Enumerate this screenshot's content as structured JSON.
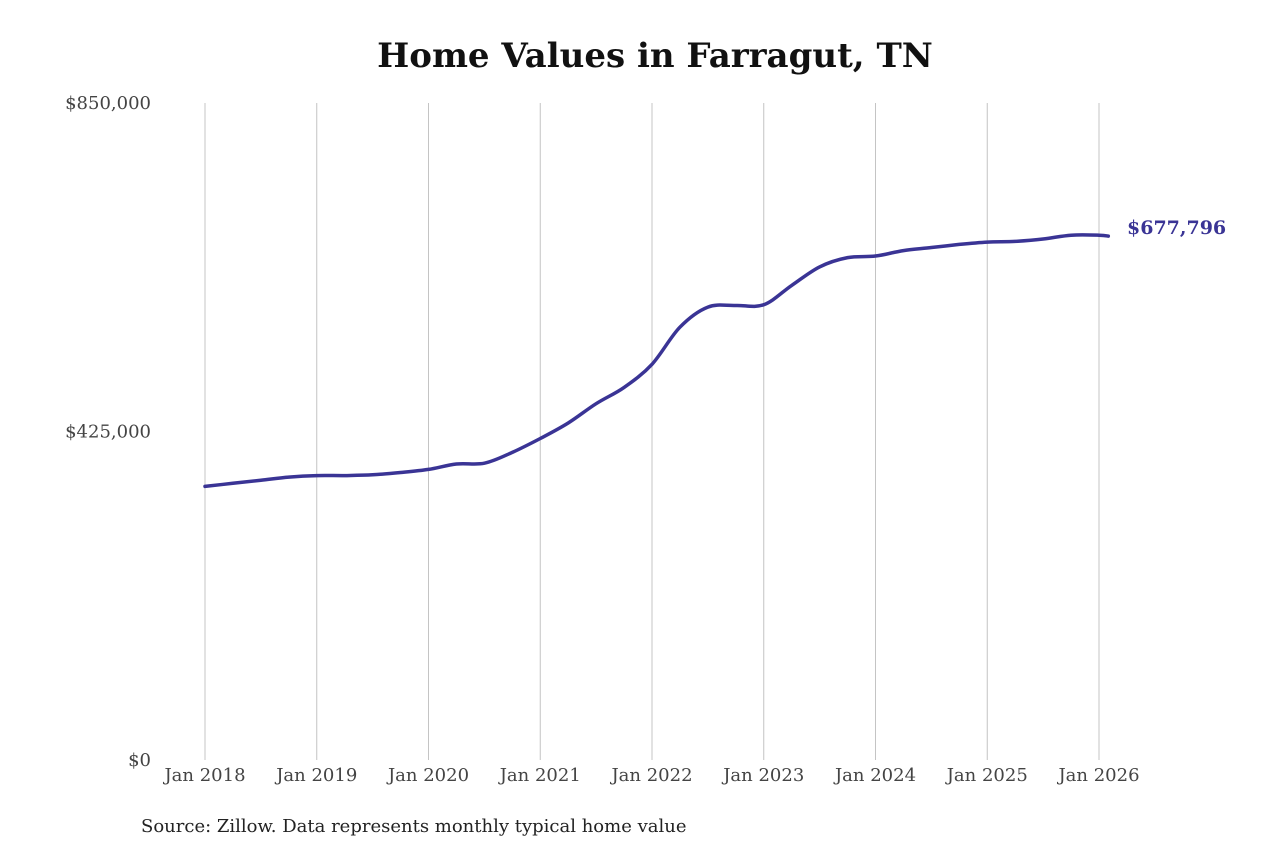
{
  "chart_data": {
    "type": "line",
    "title": "Home Values in Farragut, TN",
    "source": "Source: Zillow. Data represents monthly typical home value",
    "xlabel": "",
    "ylabel": "",
    "ylim": [
      0,
      850000
    ],
    "y_ticks": [
      {
        "value": 0,
        "label": "$0"
      },
      {
        "value": 425000,
        "label": "$425,000"
      },
      {
        "value": 850000,
        "label": "$850,000"
      }
    ],
    "x_ticks": [
      {
        "value": 2018,
        "label": "Jan 2018"
      },
      {
        "value": 2019,
        "label": "Jan 2019"
      },
      {
        "value": 2020,
        "label": "Jan 2020"
      },
      {
        "value": 2021,
        "label": "Jan 2021"
      },
      {
        "value": 2022,
        "label": "Jan 2022"
      },
      {
        "value": 2023,
        "label": "Jan 2023"
      },
      {
        "value": 2024,
        "label": "Jan 2024"
      },
      {
        "value": 2025,
        "label": "Jan 2025"
      },
      {
        "value": 2026,
        "label": "Jan 2026"
      }
    ],
    "grid": "vertical",
    "series": [
      {
        "color": "#3a3495",
        "points": [
          [
            "Jan 2018",
            354000
          ],
          [
            "Apr 2018",
            358000
          ],
          [
            "Jul 2018",
            362000
          ],
          [
            "Oct 2018",
            366000
          ],
          [
            "Jan 2019",
            368000
          ],
          [
            "Apr 2019",
            368000
          ],
          [
            "Jul 2019",
            369000
          ],
          [
            "Oct 2019",
            372000
          ],
          [
            "Jan 2020",
            376000
          ],
          [
            "Apr 2020",
            383000
          ],
          [
            "Jul 2020",
            384000
          ],
          [
            "Oct 2020",
            398000
          ],
          [
            "Jan 2021",
            416000
          ],
          [
            "Apr 2021",
            436000
          ],
          [
            "Jul 2021",
            461000
          ],
          [
            "Oct 2021",
            482000
          ],
          [
            "Jan 2022",
            512000
          ],
          [
            "Apr 2022",
            560000
          ],
          [
            "Jul 2022",
            586000
          ],
          [
            "Oct 2022",
            588000
          ],
          [
            "Jan 2023",
            589000
          ],
          [
            "Apr 2023",
            614000
          ],
          [
            "Jul 2023",
            638000
          ],
          [
            "Oct 2023",
            650000
          ],
          [
            "Jan 2024",
            652000
          ],
          [
            "Apr 2024",
            659000
          ],
          [
            "Jul 2024",
            663000
          ],
          [
            "Oct 2024",
            667000
          ],
          [
            "Jan 2025",
            670000
          ],
          [
            "Apr 2025",
            671000
          ],
          [
            "Jul 2025",
            674000
          ],
          [
            "Oct 2025",
            679000
          ],
          [
            "Jan 2026",
            679000
          ],
          [
            "Feb 2026",
            677796
          ]
        ]
      }
    ],
    "end_label": "$677,796"
  }
}
